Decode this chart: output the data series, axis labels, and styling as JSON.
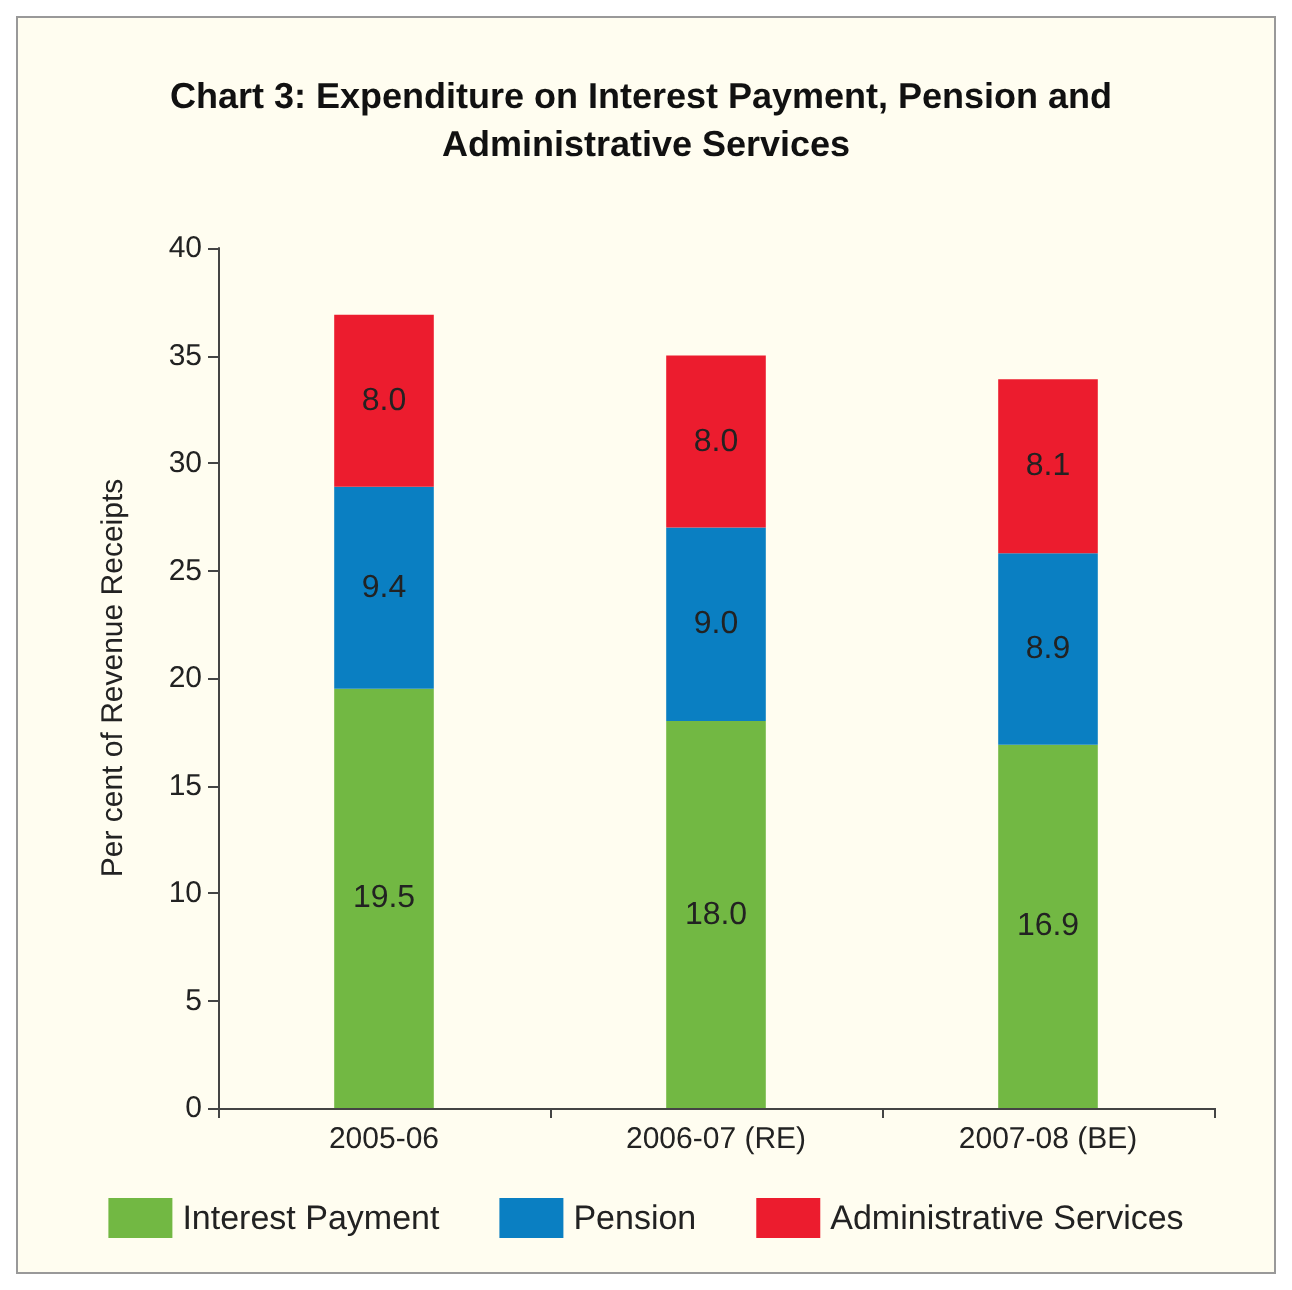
{
  "chart_data": {
    "type": "bar",
    "title": "Chart 3: Expenditure on Interest Payment, Pension and Administrative Services",
    "ylabel": "Per cent of Revenue Receipts",
    "categories": [
      "2005-06",
      "2006-07 (RE)",
      "2007-08 (BE)"
    ],
    "stacked": true,
    "ylim": [
      0,
      40
    ],
    "yticks": [
      0,
      5,
      10,
      15,
      20,
      25,
      30,
      35,
      40
    ],
    "grid": false,
    "legend": "bottom",
    "series": [
      {
        "name": "Interest Payment",
        "color": "#72b843",
        "values": [
          19.5,
          18.0,
          16.9
        ],
        "value_labels": [
          "19.5",
          "18.0",
          "16.9"
        ]
      },
      {
        "name": "Pension",
        "color": "#0a7fc2",
        "values": [
          9.4,
          9.0,
          8.9
        ],
        "value_labels": [
          "9.4",
          "9.0",
          "8.9"
        ]
      },
      {
        "name": "Administrative Services",
        "color": "#ec1c2e",
        "values": [
          8.0,
          8.0,
          8.1
        ],
        "value_labels": [
          "8.0",
          "8.0",
          "8.1"
        ]
      }
    ]
  }
}
